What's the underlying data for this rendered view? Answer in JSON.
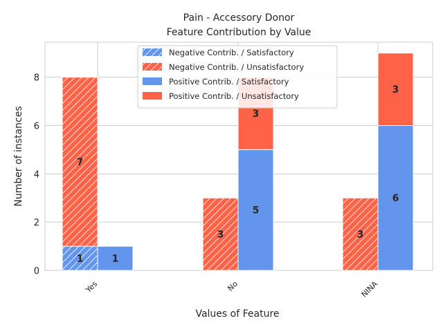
{
  "chart_data": {
    "type": "bar",
    "title": "Pain - Accessory Donor",
    "subtitle": "Feature Contribution by Value",
    "xlabel": "Values of Feature",
    "ylabel": "Number of instances",
    "categories": [
      "Yes",
      "No",
      "NINA"
    ],
    "ylim": [
      0,
      9.45
    ],
    "yticks": [
      0,
      2,
      4,
      6,
      8
    ],
    "grid": true,
    "legend_position": "top-center",
    "groups": [
      {
        "name": "Negative Contrib.",
        "hatched": true,
        "stacks": [
          {
            "name": "Negative Contrib. / Satisfactory",
            "color": "#6495ED",
            "values": [
              1,
              0,
              0
            ]
          },
          {
            "name": "Negative Contrib. / Unsatisfactory",
            "color": "#FF6347",
            "values": [
              7,
              3,
              3
            ]
          }
        ]
      },
      {
        "name": "Positive Contrib.",
        "hatched": false,
        "stacks": [
          {
            "name": "Positive Contrib. / Satisfactory",
            "color": "#6495ED",
            "values": [
              1,
              5,
              6
            ]
          },
          {
            "name": "Positive Contrib. / Unsatisfactory",
            "color": "#FF6347",
            "values": [
              0,
              3,
              3
            ]
          }
        ]
      }
    ]
  }
}
